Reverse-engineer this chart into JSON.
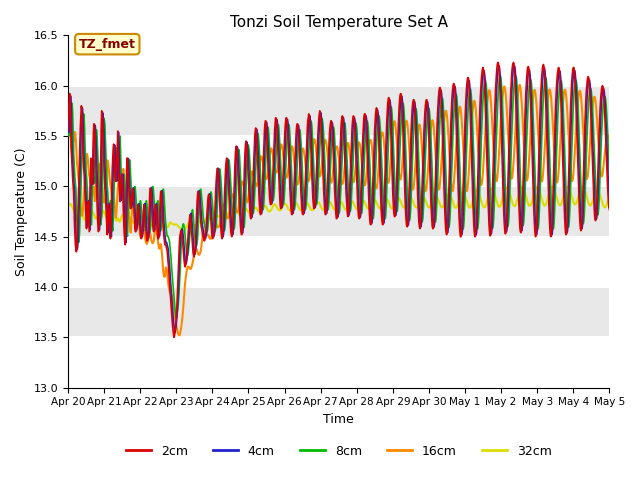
{
  "title": "Tonzi Soil Temperature Set A",
  "xlabel": "Time",
  "ylabel": "Soil Temperature (C)",
  "ylim": [
    13.0,
    16.5
  ],
  "annotation_text": "TZ_fmet",
  "annotation_bg": "#ffffcc",
  "annotation_border": "#cc8800",
  "annotation_text_color": "#880000",
  "bg_color": "#e8e8e8",
  "line_colors": {
    "2cm": "#dd0000",
    "4cm": "#2222cc",
    "8cm": "#00bb00",
    "16cm": "#ff8800",
    "32cm": "#dddd00"
  },
  "legend_labels": [
    "2cm",
    "4cm",
    "8cm",
    "16cm",
    "32cm"
  ],
  "xtick_labels": [
    "Apr 20",
    "Apr 21",
    "Apr 22",
    "Apr 23",
    "Apr 24",
    "Apr 25",
    "Apr 26",
    "Apr 27",
    "Apr 28",
    "Apr 29",
    "Apr 30",
    "May 1",
    "May 2",
    "May 3",
    "May 4",
    "May 5"
  ],
  "series_2cm": [
    15.55,
    15.65,
    15.75,
    15.92,
    15.92,
    15.82,
    15.62,
    15.35,
    15.28,
    15.18,
    15.08,
    15.02,
    14.95,
    14.82,
    14.62,
    14.52,
    14.42,
    14.38,
    14.35,
    14.38,
    14.46,
    14.62,
    14.78,
    14.92,
    15.12,
    15.32,
    15.48,
    15.62,
    15.72,
    15.8,
    15.75,
    15.62,
    15.42,
    15.28,
    15.18,
    15.12,
    15.02,
    14.92,
    14.78,
    14.68,
    14.58,
    14.72,
    14.82,
    14.85,
    14.75,
    14.65,
    14.55,
    14.82,
    15.05,
    15.2,
    15.28,
    15.18,
    15.1,
    15.02,
    15.35,
    15.52,
    15.62,
    15.62,
    15.55,
    15.42,
    15.28,
    15.12,
    14.95,
    14.82,
    14.68,
    14.6,
    14.55,
    14.6,
    14.65,
    14.72,
    15.05,
    15.28,
    15.58,
    15.75,
    15.72,
    15.68,
    15.52,
    15.35,
    15.22,
    15.1,
    14.98,
    14.92,
    14.82,
    14.72,
    14.62,
    14.52,
    14.72,
    14.82,
    14.82,
    14.72,
    14.62,
    14.52,
    14.48,
    14.6,
    14.8,
    15.02,
    15.18,
    15.28,
    15.38,
    15.42,
    15.35,
    15.22,
    15.1,
    15.05,
    15.05,
    15.15,
    15.28,
    15.42,
    15.55,
    15.35,
    15.15,
    14.98,
    14.92,
    14.85,
    14.95,
    15.05,
    15.12,
    15.12,
    15.02,
    14.88,
    14.72,
    14.62,
    14.52,
    14.45,
    14.42,
    14.62,
    14.92,
    15.15,
    15.28,
    15.28,
    15.18,
    15.08,
    14.98,
    14.92,
    14.85,
    14.78,
    14.78,
    14.82,
    14.88,
    14.95,
    14.98,
    14.95,
    14.88,
    14.78,
    14.68,
    14.58,
    14.55,
    14.55,
    14.58,
    14.65,
    14.72,
    14.78,
    14.82,
    14.8,
    14.72,
    14.65,
    14.58,
    14.52,
    14.5,
    14.48,
    14.52,
    14.55,
    14.62,
    14.72,
    14.78,
    14.82,
    14.78,
    14.72,
    14.62,
    14.55,
    14.5,
    14.46,
    14.46,
    14.48,
    14.52,
    14.65,
    14.78,
    14.9,
    14.98,
    14.98,
    14.95,
    14.88,
    14.78,
    14.68,
    14.6,
    14.56,
    14.55,
    14.62,
    14.72,
    14.8,
    14.82,
    14.78,
    14.72,
    14.6,
    14.52,
    14.48,
    14.48,
    14.5,
    14.58,
    14.72,
    14.88,
    14.95,
    14.95,
    14.9,
    14.8,
    14.72,
    14.62,
    14.56,
    14.5,
    14.46,
    14.42,
    14.42,
    14.42,
    14.4,
    14.38,
    14.36,
    14.3,
    14.25,
    14.2,
    14.12,
    14.05,
    13.98,
    13.92,
    13.85,
    13.78,
    13.72,
    13.65,
    13.6,
    13.56,
    13.52,
    13.5,
    13.52,
    13.56,
    13.6,
    13.65,
    13.72,
    13.8,
    13.9,
    14.02,
    14.15,
    14.28,
    14.38,
    14.48,
    14.52,
    14.54,
    14.56,
    14.55,
    14.52,
    14.48,
    14.42,
    14.36,
    14.3,
    14.25,
    14.22,
    14.2,
    14.22,
    14.25,
    14.3,
    14.35,
    14.42,
    14.48,
    14.55,
    14.6,
    14.65,
    14.7,
    14.72,
    14.68,
    14.62,
    14.55,
    14.48,
    14.4,
    14.35,
    14.32,
    14.3,
    14.32,
    14.35,
    14.4,
    14.5,
    14.62,
    14.75,
    14.85,
    14.92,
    14.95,
    14.95,
    14.9,
    14.85,
    14.78,
    14.72,
    14.65,
    14.6,
    14.58,
    14.55,
    14.52,
    14.5,
    14.48,
    14.46,
    14.46,
    14.48,
    14.5,
    14.55,
    14.62,
    14.7,
    14.78,
    14.85,
    14.9,
    14.92,
    14.9,
    14.85,
    14.8,
    14.72,
    14.65,
    14.58,
    14.52,
    14.5,
    14.48,
    14.5,
    14.52,
    14.58,
    14.68,
    14.8,
    14.92,
    15.02,
    15.1,
    15.15,
    15.18,
    15.15,
    15.1,
    15.02,
    14.92,
    14.82,
    14.72,
    14.62,
    14.55,
    14.5,
    14.48,
    14.5,
    14.55,
    14.62,
    14.72,
    14.85,
    14.98,
    15.1,
    15.2,
    15.25,
    15.28,
    15.25,
    15.18,
    15.1,
    15.0,
    14.9,
    14.8,
    14.7,
    14.62,
    14.55,
    14.52,
    14.5,
    14.52,
    14.58,
    14.68,
    14.8,
    14.95,
    15.1,
    15.22,
    15.32,
    15.38,
    15.4,
    15.38,
    15.32,
    15.22,
    15.12,
    15.0,
    14.88,
    14.78,
    14.68,
    14.6,
    14.55,
    14.52,
    14.52,
    14.58,
    14.68,
    14.8,
    14.95,
    15.1,
    15.25,
    15.35,
    15.42,
    15.45,
    15.42,
    15.38,
    15.28,
    15.18,
    15.08,
    14.98,
    14.88,
    14.8,
    14.72,
    14.68,
    14.68,
    14.72,
    14.8,
    14.92,
    15.05,
    15.18,
    15.3,
    15.42,
    15.5,
    15.55,
    15.58,
    15.55,
    15.48,
    15.38,
    15.28,
    15.15,
    15.02,
    14.92,
    14.82,
    14.75,
    14.72,
    14.72,
    14.75,
    14.82,
    14.92,
    15.05,
    15.18,
    15.32,
    15.45,
    15.55,
    15.62,
    15.65,
    15.65,
    15.6,
    15.52,
    15.42,
    15.3,
    15.18,
    15.08,
    14.98,
    14.9,
    14.85,
    14.82,
    14.82,
    14.85,
    14.9,
    14.98,
    15.08,
    15.2,
    15.32,
    15.45,
    15.55,
    15.62,
    15.68,
    15.68,
    15.65,
    15.58,
    15.48,
    15.38,
    15.25,
    15.12,
    15.0,
    14.9,
    14.82,
    14.78,
    14.78,
    14.8,
    14.86,
    14.95,
    15.06,
    15.18,
    15.3,
    15.42,
    15.52,
    15.6,
    15.65,
    15.68,
    15.68,
    15.65,
    15.58,
    15.48,
    15.38,
    15.25,
    15.12,
    15.0,
    14.9,
    14.82,
    14.75,
    14.72,
    14.72,
    14.75,
    14.8,
    14.88,
    14.98,
    15.1,
    15.22,
    15.35,
    15.46,
    15.55,
    15.6,
    15.62,
    15.62,
    15.58,
    15.5,
    15.42,
    15.3,
    15.18,
    15.05,
    14.95,
    14.86,
    14.78,
    14.74,
    14.72,
    14.72,
    14.75,
    14.8,
    14.88,
    14.98,
    15.1,
    15.22,
    15.35,
    15.48,
    15.58,
    15.65,
    15.68,
    15.72,
    15.7,
    15.65,
    15.55,
    15.45,
    15.32,
    15.2,
    15.08,
    14.98,
    14.88,
    14.82,
    14.78,
    14.78,
    14.8,
    14.85,
    14.95,
    15.06,
    15.18,
    15.3,
    15.42,
    15.52,
    15.6,
    15.68,
    15.72,
    15.75,
    15.72,
    15.68,
    15.6,
    15.5,
    15.38,
    15.25,
    15.12,
    15.0,
    14.9,
    14.82,
    14.75,
    14.72,
    14.72,
    14.75,
    14.82,
    14.92,
    15.05,
    15.18,
    15.3,
    15.42,
    15.52,
    15.58,
    15.62,
    15.65,
    15.65,
    15.62,
    15.55,
    15.45,
    15.35,
    15.22,
    15.1,
    14.98,
    14.88,
    14.8,
    14.72,
    14.68,
    14.68,
    14.7,
    14.78,
    14.88,
    15.0,
    15.12,
    15.25,
    15.38,
    15.5,
    15.58,
    15.65,
    15.68,
    15.7,
    15.68,
    15.62,
    15.52,
    15.42,
    15.3,
    15.18,
    15.05,
    14.94,
    14.85,
    14.78,
    14.72,
    14.7,
    14.72,
    14.78,
    14.88,
    15.0,
    15.12,
    15.25,
    15.38,
    15.5,
    15.58,
    15.65,
    15.68,
    15.7,
    15.68,
    15.65,
    15.58,
    15.48,
    15.35,
    15.22,
    15.08,
    14.96,
    14.85,
    14.76,
    14.7,
    14.68,
    14.68,
    14.72,
    14.8,
    14.92,
    15.05,
    15.18,
    15.32,
    15.46,
    15.56,
    15.64,
    15.7,
    15.72,
    15.72,
    15.7,
    15.65,
    15.55,
    15.42,
    15.28,
    15.14,
    15.0,
    14.88,
    14.78,
    14.7,
    14.64,
    14.62,
    14.62,
    14.66,
    14.76,
    14.88,
    15.02,
    15.16,
    15.3,
    15.45,
    15.56,
    15.65,
    15.72,
    15.76,
    15.78,
    15.76,
    15.72,
    15.65,
    15.55,
    15.42,
    15.28,
    15.14,
    15.0,
    14.88,
    14.78,
    14.7,
    14.65,
    14.62,
    14.62,
    14.66,
    14.76,
    14.9,
    15.05,
    15.2,
    15.35,
    15.5,
    15.62,
    15.72,
    15.8,
    15.85,
    15.88,
    15.88,
    15.85,
    15.78,
    15.68,
    15.55,
    15.4,
    15.25,
    15.1,
    14.97,
    14.86,
    14.78,
    14.72,
    14.7,
    14.7,
    14.75,
    14.85,
    14.98,
    15.12,
    15.28,
    15.42,
    15.56,
    15.68,
    15.78,
    15.85,
    15.9,
    15.92,
    15.92,
    15.88,
    15.82,
    15.72,
    15.6,
    15.46,
    15.3,
    15.14,
    15.0,
    14.87,
    14.76,
    14.68,
    14.62,
    14.6,
    14.6,
    14.64,
    14.72,
    14.85,
    14.99,
    15.14,
    15.28,
    15.42,
    15.55,
    15.65,
    15.74,
    15.8,
    15.84,
    15.86,
    15.86,
    15.82,
    15.75,
    15.65,
    15.52,
    15.38,
    15.23,
    15.08,
    14.94,
    14.82,
    14.72,
    14.64,
    14.6,
    14.58,
    14.6,
    14.65,
    14.75,
    14.88,
    15.02,
    15.16,
    15.3,
    15.44,
    15.56,
    15.66,
    15.74,
    15.8,
    15.84,
    15.86,
    15.86,
    15.82,
    15.76,
    15.66,
    15.54,
    15.4,
    15.25,
    15.1,
    14.96,
    14.84,
    14.74,
    14.66,
    14.6,
    14.58,
    14.58,
    14.62,
    14.7,
    14.82,
    14.96,
    15.12,
    15.28,
    15.42,
    15.56,
    15.68,
    15.78,
    15.86,
    15.92,
    15.96,
    15.98,
    15.98,
    15.95,
    15.88,
    15.78,
    15.66,
    15.52,
    15.36,
    15.2,
    15.04,
    14.89,
    14.76,
    14.66,
    14.58,
    14.54,
    14.52,
    14.54,
    14.6,
    14.7,
    14.83,
    14.98,
    15.14,
    15.3,
    15.46,
    15.6,
    15.72,
    15.82,
    15.9,
    15.96,
    16.0,
    16.02,
    16.02,
    16.0,
    15.94,
    15.85,
    15.73,
    15.59,
    15.44,
    15.28,
    15.11,
    14.96,
    14.82,
    14.7,
    14.6,
    14.54,
    14.5,
    14.5,
    14.53,
    14.6,
    14.72,
    14.86,
    15.02,
    15.2,
    15.36,
    15.52,
    15.66,
    15.78,
    15.88,
    15.96,
    16.02,
    16.06,
    16.08,
    16.08,
    16.04,
    15.98,
    15.88,
    15.76,
    15.62,
    15.47,
    15.31,
    15.14,
    14.99,
    14.84,
    14.72,
    14.62,
    14.55,
    14.51,
    14.5,
    14.52,
    14.58,
    14.68,
    14.82,
    14.97,
    15.14,
    15.32,
    15.48,
    15.62,
    15.76,
    15.87,
    15.96,
    16.04,
    16.1,
    16.14,
    16.17,
    16.18,
    16.16,
    16.12,
    16.04,
    15.93,
    15.8,
    15.65,
    15.5,
    15.33,
    15.16,
    15.0,
    14.85,
    14.72,
    14.62,
    14.55,
    14.51,
    14.51,
    14.54,
    14.61,
    14.72,
    14.87,
    15.03,
    15.2,
    15.37,
    15.54,
    15.68,
    15.82,
    15.94,
    16.03,
    16.11,
    16.17,
    16.21,
    16.23,
    16.23,
    16.2,
    16.14,
    16.05,
    15.94,
    15.8,
    15.65,
    15.5,
    15.33,
    15.17,
    15.01,
    14.87,
    14.74,
    14.64,
    14.57,
    14.53,
    14.53,
    14.56,
    14.63,
    14.74,
    14.88,
    15.04,
    15.21,
    15.38,
    15.54,
    15.68,
    15.82,
    15.93,
    16.02,
    16.1,
    16.16,
    16.2,
    16.22,
    16.23,
    16.22,
    16.18,
    16.1,
    15.99,
    15.86,
    15.72,
    15.57,
    15.4,
    15.23,
    15.06,
    14.91,
    14.78,
    14.67,
    14.59,
    14.55,
    14.54,
    14.57,
    14.64,
    14.75,
    14.89,
    15.05,
    15.22,
    15.38,
    15.55,
    15.7,
    15.83,
    15.94,
    16.03,
    16.1,
    16.15,
    16.18,
    16.19,
    16.18,
    16.14,
    16.07,
    15.97,
    15.85,
    15.72,
    15.57,
    15.42,
    15.26,
    15.09,
    14.93,
    14.79,
    14.67,
    14.58,
    14.52,
    14.5,
    14.52,
    14.58,
    14.68,
    14.81,
    14.97,
    15.14,
    15.32,
    15.49,
    15.64,
    15.78,
    15.9,
    15.99,
    16.07,
    16.13,
    16.18,
    16.2,
    16.21,
    16.19,
    16.14,
    16.06,
    15.96,
    15.84,
    15.7,
    15.55,
    15.4,
    15.24,
    15.08,
    14.93,
    14.79,
    14.67,
    14.58,
    14.52,
    14.5,
    14.51,
    14.57,
    14.67,
    14.8,
    14.95,
    15.12,
    15.3,
    15.47,
    15.62,
    15.76,
    15.87,
    15.96,
    16.04,
    16.1,
    16.14,
    16.17,
    16.18,
    16.17,
    16.13,
    16.06,
    15.96,
    15.84,
    15.7,
    15.55,
    15.4,
    15.24,
    15.09,
    14.94,
    14.8,
    14.69,
    14.6,
    14.54,
    14.52,
    14.53,
    14.59,
    14.69,
    14.83,
    14.99,
    15.16,
    15.34,
    15.51,
    15.66,
    15.8,
    15.91,
    16.01,
    16.08,
    16.13,
    16.17,
    16.18,
    16.18,
    16.15,
    16.09,
    16.0,
    15.89,
    15.76,
    15.62,
    15.47,
    15.32,
    15.16,
    15.01,
    14.87,
    14.75,
    14.65,
    14.59,
    14.56,
    14.57,
    14.62,
    14.71,
    14.84,
    14.99,
    15.15,
    15.32,
    15.48,
    15.62,
    15.75,
    15.85,
    15.94,
    16.0,
    16.05,
    16.08,
    16.09,
    16.08,
    16.05,
    15.99,
    15.91,
    15.81,
    15.69,
    15.56,
    15.42,
    15.28,
    15.14,
    15.01,
    14.89,
    14.79,
    14.71,
    14.67,
    14.66,
    14.69,
    14.75,
    14.85,
    14.98,
    15.13,
    15.28,
    15.43,
    15.56,
    15.68,
    15.78,
    15.86,
    15.92,
    15.96,
    15.99,
    16.0,
    15.99,
    15.96,
    15.9,
    15.82,
    15.72,
    15.61,
    15.49,
    15.37,
    15.24,
    15.12,
    15.01,
    14.92,
    14.84,
    14.79,
    14.77
  ]
}
